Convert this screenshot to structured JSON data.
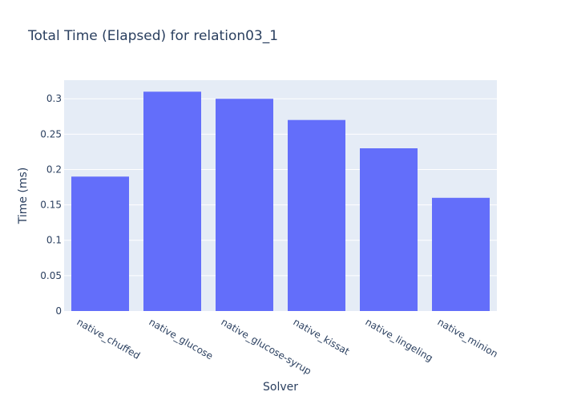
{
  "chart_data": {
    "type": "bar",
    "title": "Total Time (Elapsed) for relation03_1",
    "xlabel": "Solver",
    "ylabel": "Time (ms)",
    "categories": [
      "native_chuffed",
      "native_glucose",
      "native_glucose-syrup",
      "native_kissat",
      "native_lingeling",
      "native_minion"
    ],
    "values": [
      0.19,
      0.31,
      0.3,
      0.27,
      0.23,
      0.16
    ],
    "ylim": [
      0,
      0.3263
    ],
    "yticks": [
      0,
      0.05,
      0.1,
      0.15,
      0.2,
      0.25,
      0.3
    ],
    "ytick_labels": [
      "0",
      "0.05",
      "0.1",
      "0.15",
      "0.2",
      "0.25",
      "0.3"
    ],
    "grid": true,
    "colors": {
      "bar": "#636efa",
      "plot_bg": "#e5ecf6",
      "grid": "#ffffff",
      "text": "#2a3f5f"
    }
  }
}
